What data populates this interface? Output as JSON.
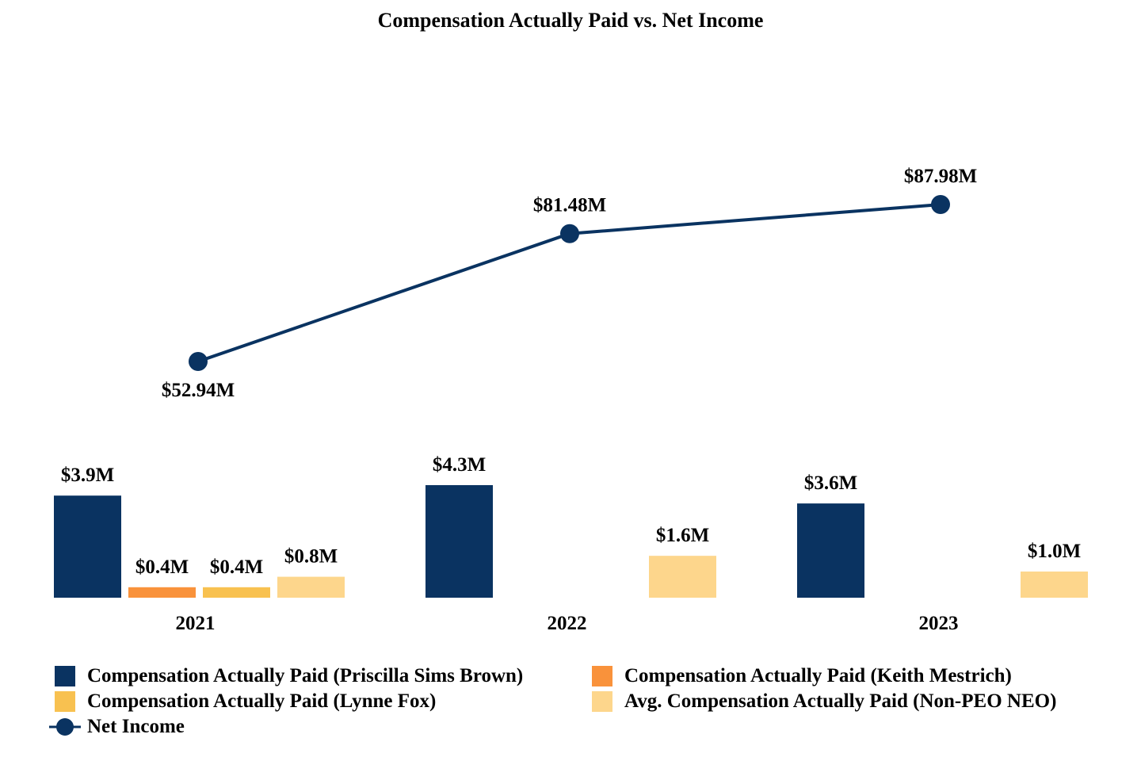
{
  "chart_data": {
    "type": "bar",
    "title": "Compensation Actually Paid vs. Net Income",
    "categories": [
      "2021",
      "2022",
      "2023"
    ],
    "series": [
      {
        "name": "Compensation Actually Paid (Priscilla Sims Brown)",
        "color": "#0a3361",
        "values": [
          3.9,
          4.3,
          3.6
        ],
        "labels": [
          "$3.9M",
          "$4.3M",
          "$3.6M"
        ]
      },
      {
        "name": "Compensation Actually Paid (Keith Mestrich)",
        "color": "#f9923b",
        "values": [
          0.4,
          null,
          null
        ],
        "labels": [
          "$0.4M",
          null,
          null
        ]
      },
      {
        "name": "Compensation Actually Paid (Lynne Fox)",
        "color": "#f8c150",
        "values": [
          0.4,
          null,
          null
        ],
        "labels": [
          "$0.4M",
          null,
          null
        ]
      },
      {
        "name": "Avg. Compensation Actually Paid (Non-PEO NEO)",
        "color": "#fdd68c",
        "values": [
          0.8,
          1.6,
          1.0
        ],
        "labels": [
          "$0.8M",
          "$1.6M",
          "$1.0M"
        ]
      }
    ],
    "line_series": {
      "name": "Net Income",
      "type": "line",
      "color": "#0a3361",
      "values": [
        52.94,
        81.48,
        87.98
      ],
      "labels": [
        "$52.94M",
        "$81.48M",
        "$87.98M"
      ]
    },
    "bar_unit": "$M",
    "line_unit": "$M",
    "ylim_bars": [
      0,
      4.3
    ],
    "ylim_line": [
      0,
      88
    ],
    "grid": false,
    "axes_visible": false,
    "legend_position": "bottom"
  }
}
